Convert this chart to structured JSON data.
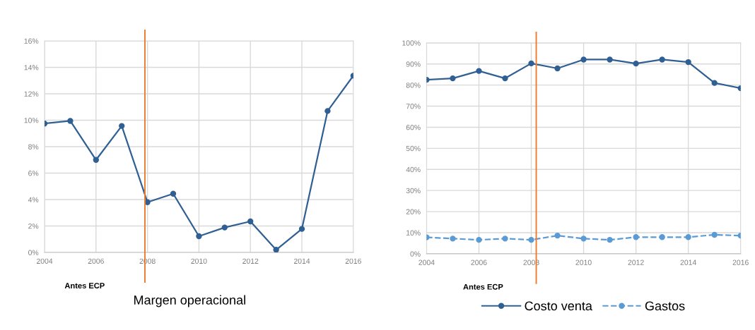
{
  "chart_data": [
    {
      "type": "line",
      "x": [
        2004,
        2005,
        2006,
        2007,
        2008,
        2009,
        2010,
        2011,
        2012,
        2013,
        2014,
        2015,
        2016
      ],
      "series": [
        {
          "color": "#2f5f93",
          "values": [
            9.75,
            9.95,
            7.0,
            9.57,
            3.8,
            4.44,
            1.23,
            1.89,
            2.35,
            0.2,
            1.78,
            10.7,
            13.37
          ]
        }
      ],
      "xlim": [
        2004,
        2016
      ],
      "xticks": [
        2004,
        2006,
        2008,
        2010,
        2012,
        2014,
        2016
      ],
      "ylim": [
        0,
        16
      ],
      "yticks": [
        {
          "value": 0,
          "label": "0%"
        },
        {
          "value": 2,
          "label": "2%"
        },
        {
          "value": 4,
          "label": "4%"
        },
        {
          "value": 6,
          "label": "6%"
        },
        {
          "value": 8,
          "label": "8%"
        },
        {
          "value": 10,
          "label": "10%"
        },
        {
          "value": 12,
          "label": "12%"
        },
        {
          "value": 14,
          "label": "14%"
        },
        {
          "value": 16,
          "label": "16%"
        }
      ],
      "ref_lines": [
        {
          "axis": "x",
          "value": 2007.9,
          "color": "#ed7d31"
        }
      ],
      "annotations": [
        "Antes ECP",
        "Margen operacional"
      ],
      "grid": true,
      "marker": "circle",
      "line_style": "solid",
      "legend": false
    },
    {
      "type": "line",
      "x": [
        2004,
        2005,
        2006,
        2007,
        2008,
        2009,
        2010,
        2011,
        2012,
        2013,
        2014,
        2015,
        2016
      ],
      "series": [
        {
          "name": "Costo venta",
          "color": "#2f5f93",
          "line_style": "solid",
          "values": [
            82.5,
            83.2,
            86.7,
            83.2,
            90.3,
            87.9,
            92.1,
            92.1,
            90.2,
            92.1,
            90.9,
            81.0,
            78.5
          ]
        },
        {
          "name": "Gastos",
          "color": "#5b9bd5",
          "line_style": "dashed",
          "values": [
            7.8,
            7.2,
            6.6,
            7.2,
            6.6,
            8.6,
            7.2,
            6.6,
            7.9,
            7.9,
            7.9,
            9.0,
            8.6
          ]
        }
      ],
      "xlim": [
        2004,
        2016
      ],
      "xticks": [
        2004,
        2006,
        2008,
        2010,
        2012,
        2014,
        2016
      ],
      "ylim": [
        0,
        100
      ],
      "yticks": [
        {
          "value": 0,
          "label": "0%"
        },
        {
          "value": 10,
          "label": "10%"
        },
        {
          "value": 20,
          "label": "20%"
        },
        {
          "value": 30,
          "label": "30%"
        },
        {
          "value": 40,
          "label": "40%"
        },
        {
          "value": 50,
          "label": "50%"
        },
        {
          "value": 60,
          "label": "60%"
        },
        {
          "value": 70,
          "label": "70%"
        },
        {
          "value": 80,
          "label": "80%"
        },
        {
          "value": 90,
          "label": "90%"
        },
        {
          "value": 100,
          "label": "100%"
        }
      ],
      "ref_lines": [
        {
          "axis": "x",
          "value": 2008.19,
          "color": "#ed7d31"
        }
      ],
      "annotations": [
        "Antes ECP"
      ],
      "grid": true,
      "marker": "circle",
      "legend": "bottom"
    }
  ]
}
